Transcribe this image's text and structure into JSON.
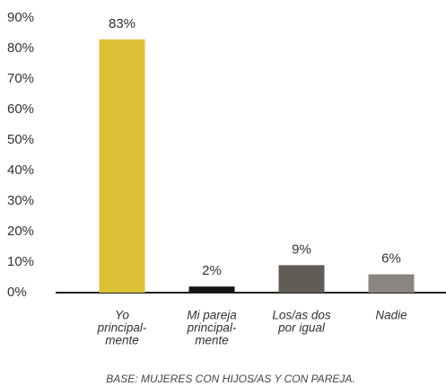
{
  "chart_data": {
    "type": "bar",
    "categories": [
      [
        "Yo",
        "principal-",
        "mente"
      ],
      [
        "Mi pareja",
        "principal-",
        "mente"
      ],
      [
        "Los/as dos",
        "por igual"
      ],
      [
        "Nadie"
      ]
    ],
    "values": [
      83,
      2,
      9,
      6
    ],
    "value_labels": [
      "83%",
      "2%",
      "9%",
      "6%"
    ],
    "colors": [
      "#dcc035",
      "#151515",
      "#625c57",
      "#8a8580"
    ],
    "ylim": [
      0,
      90
    ],
    "yticks": [
      {
        "value": 0,
        "label": "0%"
      },
      {
        "value": 10,
        "label": "10%"
      },
      {
        "value": 20,
        "label": "20%"
      },
      {
        "value": 30,
        "label": "30%"
      },
      {
        "value": 40,
        "label": "40%"
      },
      {
        "value": 50,
        "label": "50%"
      },
      {
        "value": 60,
        "label": "60%"
      },
      {
        "value": 70,
        "label": "70%"
      },
      {
        "value": 80,
        "label": "80%"
      },
      {
        "value": 90,
        "label": "90%"
      }
    ],
    "grid": false,
    "footnote": "BASE: MUJERES CON HIJOS/AS Y CON PAREJA."
  }
}
